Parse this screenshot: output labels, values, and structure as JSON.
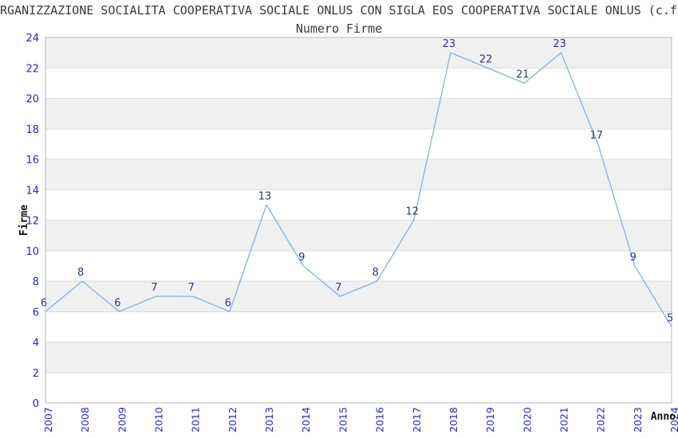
{
  "chart_data": {
    "type": "line",
    "title": "RGANIZZAZIONE SOCIALITA COOPERATIVA SOCIALE ONLUS CON SIGLA EOS COOPERATIVA SOCIALE ONLUS (c.f.",
    "subtitle": "Numero Firme",
    "xlabel": "Anno",
    "ylabel": "Firme",
    "categories": [
      "2007",
      "2008",
      "2009",
      "2010",
      "2011",
      "2012",
      "2013",
      "2014",
      "2015",
      "2016",
      "2017",
      "2018",
      "2019",
      "2020",
      "2021",
      "2022",
      "2023",
      "2024"
    ],
    "values": [
      6,
      8,
      6,
      7,
      7,
      6,
      13,
      9,
      7,
      8,
      12,
      23,
      22,
      21,
      23,
      17,
      9,
      5
    ],
    "ylim": [
      0,
      24
    ],
    "ytick_step": 2,
    "grid": true,
    "legend_position": "none",
    "band_fill": "alternating horizontal stripes",
    "colors": {
      "line": "#80b2e6",
      "tick_label": "#2626d8",
      "data_label": "#333387",
      "band": "#f0f0f0",
      "gridline": "#dcdcdc",
      "border": "#b9b9b9",
      "title_text": "#3a3a3a",
      "axis_title_text": "#111111",
      "background": "#ffffff"
    }
  }
}
